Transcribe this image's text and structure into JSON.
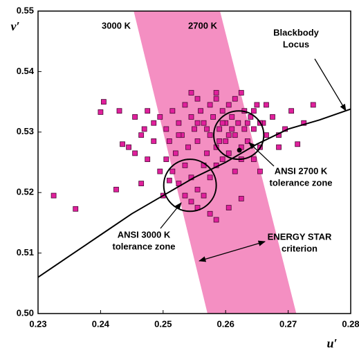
{
  "chart_data": {
    "type": "scatter",
    "x_label": "u′",
    "y_label": "v′",
    "xlim": [
      0.23,
      0.28
    ],
    "ylim": [
      0.5,
      0.55
    ],
    "xticks": [
      {
        "value": 0.23,
        "label": "0.23"
      },
      {
        "value": 0.24,
        "label": "0.24"
      },
      {
        "value": 0.25,
        "label": "0.25"
      },
      {
        "value": 0.26,
        "label": "0.26"
      },
      {
        "value": 0.27,
        "label": "0.27"
      },
      {
        "value": 0.28,
        "label": "0.28"
      }
    ],
    "yticks": [
      {
        "value": 0.5,
        "label": "0.50"
      },
      {
        "value": 0.51,
        "label": "0.51"
      },
      {
        "value": 0.52,
        "label": "0.52"
      },
      {
        "value": 0.53,
        "label": "0.53"
      },
      {
        "value": 0.54,
        "label": "0.54"
      },
      {
        "value": 0.55,
        "label": "0.55"
      }
    ],
    "color": "#e0209c",
    "band_color": "#f48fc2",
    "band": {
      "left": [
        [
          0.2453,
          0.55
        ],
        [
          0.2571,
          0.5
        ]
      ],
      "right": [
        [
          0.2591,
          0.55
        ],
        [
          0.2713,
          0.5
        ]
      ]
    },
    "locus": {
      "x": [
        0.23,
        0.235,
        0.24,
        0.245,
        0.25,
        0.255,
        0.26,
        0.265,
        0.27,
        0.275,
        0.28
      ],
      "y": [
        0.506,
        0.5095,
        0.513,
        0.5165,
        0.5195,
        0.5225,
        0.525,
        0.528,
        0.5305,
        0.532,
        0.5338
      ]
    },
    "ellipses": [
      {
        "center": [
          0.2543,
          0.5212
        ],
        "r": [
          0.0042,
          0.0043
        ]
      },
      {
        "center": [
          0.2621,
          0.5295
        ],
        "r": [
          0.004,
          0.004
        ]
      }
    ],
    "dot": [
      0.2622,
      0.527
    ],
    "annotations": [
      {
        "text": [
          "3000 K"
        ]
      },
      {
        "text": [
          "2700 K"
        ]
      },
      {
        "text": [
          "Blackbody",
          "Locus"
        ]
      },
      {
        "text": [
          "ANSI 2700 K",
          "tolerance zone"
        ]
      },
      {
        "text": [
          "ANSI 3000 K",
          "tolerance zone"
        ]
      },
      {
        "text": [
          "ENERGY STAR",
          "criterion"
        ]
      }
    ],
    "x": [
      0.2325,
      0.236,
      0.24,
      0.2405,
      0.243,
      0.2435,
      0.2445,
      0.2425,
      0.2465,
      0.2455,
      0.247,
      0.2485,
      0.2495,
      0.25,
      0.251,
      0.2535,
      0.2555,
      0.2575,
      0.2585,
      0.2605,
      0.2625,
      0.2645,
      0.2655,
      0.2685,
      0.2705,
      0.274,
      0.2725,
      0.2715,
      0.2665,
      0.2495,
      0.2505,
      0.251,
      0.2515,
      0.252,
      0.2525,
      0.253,
      0.2535,
      0.254,
      0.2545,
      0.255,
      0.2555,
      0.2555,
      0.256,
      0.2565,
      0.257,
      0.2575,
      0.2575,
      0.258,
      0.2585,
      0.2585,
      0.259,
      0.2595,
      0.26,
      0.26,
      0.2605,
      0.261,
      0.2615,
      0.2615,
      0.262,
      0.2625,
      0.263,
      0.263,
      0.2635,
      0.264,
      0.2645,
      0.265,
      0.2655,
      0.266,
      0.2665,
      0.2535,
      0.2545,
      0.2525,
      0.2565,
      0.2575,
      0.2555,
      0.2595,
      0.2605,
      0.2625,
      0.2615,
      0.2505,
      0.2515,
      0.2485,
      0.2475,
      0.2465,
      0.2455,
      0.2475,
      0.2585,
      0.2565,
      0.2545,
      0.2675,
      0.2685,
      0.2695,
      0.2625,
      0.2585,
      0.2545,
      0.257,
      0.259,
      0.261,
      0.2635,
      0.2595,
      0.2555,
      0.2525,
      0.2605,
      0.2645,
      0.2655
    ],
    "values": [
      0.5195,
      0.5173,
      0.5333,
      0.535,
      0.5335,
      0.528,
      0.5275,
      0.5205,
      0.5215,
      0.5265,
      0.5305,
      0.5315,
      0.5235,
      0.5195,
      0.522,
      0.5195,
      0.5175,
      0.5165,
      0.5155,
      0.5175,
      0.519,
      0.5255,
      0.5235,
      0.5295,
      0.5335,
      0.5345,
      0.5315,
      0.528,
      0.5345,
      0.5325,
      0.5305,
      0.5285,
      0.5335,
      0.5265,
      0.5315,
      0.5295,
      0.5345,
      0.5275,
      0.5325,
      0.5305,
      0.5355,
      0.5285,
      0.5335,
      0.5315,
      0.5265,
      0.5345,
      0.5295,
      0.5325,
      0.5355,
      0.5275,
      0.5305,
      0.5335,
      0.5315,
      0.5285,
      0.5345,
      0.5325,
      0.5295,
      0.5355,
      0.5315,
      0.5275,
      0.5335,
      0.5305,
      0.5285,
      0.5325,
      0.5305,
      0.5345,
      0.5275,
      0.5315,
      0.5295,
      0.5245,
      0.5225,
      0.5215,
      0.5245,
      0.5225,
      0.5205,
      0.5255,
      0.5265,
      0.5255,
      0.5235,
      0.5255,
      0.5235,
      0.5285,
      0.5255,
      0.5295,
      0.5325,
      0.5335,
      0.5245,
      0.5195,
      0.5185,
      0.5325,
      0.5275,
      0.5305,
      0.5365,
      0.5365,
      0.5365,
      0.5305,
      0.5285,
      0.5305,
      0.5315,
      0.5315,
      0.5315,
      0.5295,
      0.5295,
      0.5335,
      0.5315
    ]
  }
}
